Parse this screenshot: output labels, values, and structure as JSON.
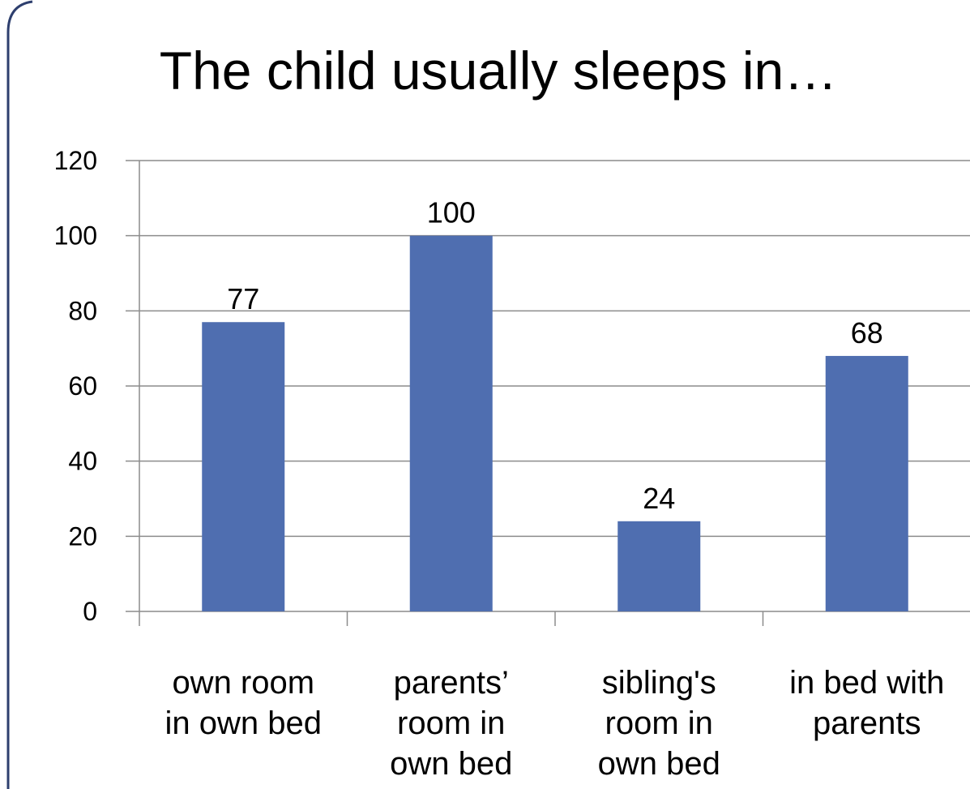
{
  "chart_data": {
    "type": "bar",
    "title": "The child usually sleeps in…",
    "categories": [
      "own room in own bed",
      "parents’ room in own bed",
      "sibling's room in own bed",
      "in bed with parents"
    ],
    "values": [
      77,
      100,
      24,
      68
    ],
    "color": "#4f6eb0",
    "ylim": [
      0,
      120
    ],
    "yticks": [
      0,
      20,
      40,
      60,
      80,
      100,
      120
    ],
    "grid": true
  }
}
